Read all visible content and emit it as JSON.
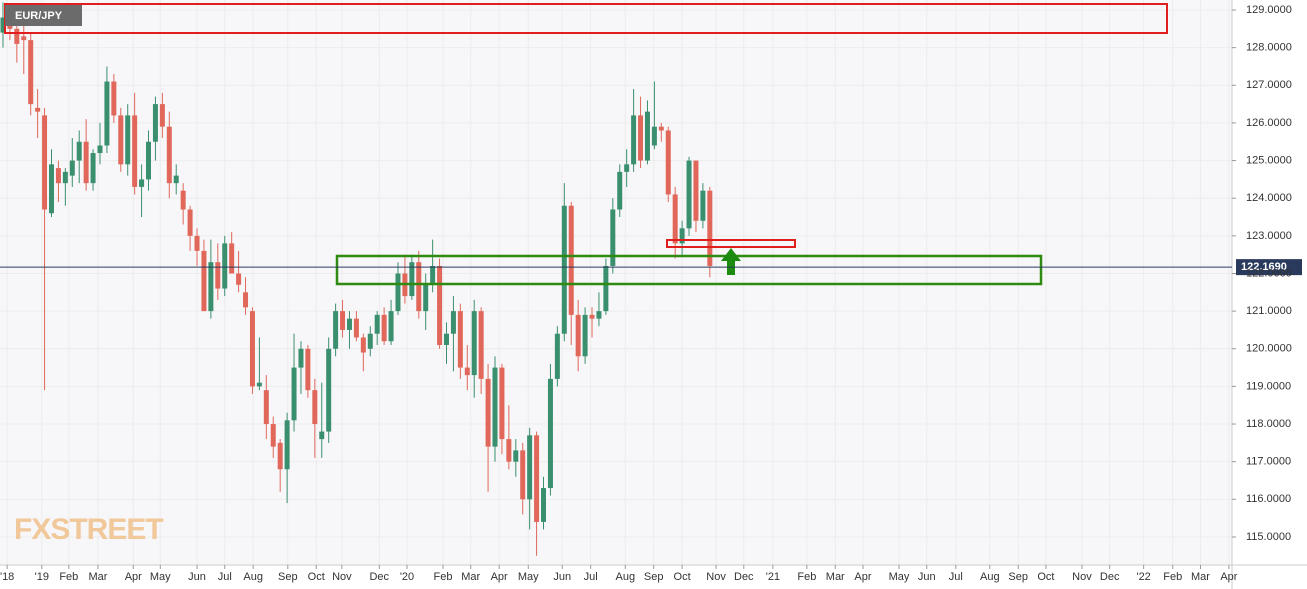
{
  "chart_data": {
    "type": "candlestick",
    "title": "EUR/JPY",
    "watermark": "FXSTREET",
    "up_color": "#3a8f6e",
    "down_color": "#e0675a",
    "grid": true,
    "xlim": [
      -0.43,
      177.35
    ],
    "ylim": [
      114.255,
      129.266
    ],
    "yticks": [
      {
        "value": 115,
        "label": "115.0000"
      },
      {
        "value": 116,
        "label": "116.0000"
      },
      {
        "value": 117,
        "label": "117.0000"
      },
      {
        "value": 118,
        "label": "118.0000"
      },
      {
        "value": 119,
        "label": "119.0000"
      },
      {
        "value": 120,
        "label": "120.0000"
      },
      {
        "value": 121,
        "label": "121.0000"
      },
      {
        "value": 122,
        "label": "122.0000"
      },
      {
        "value": 123,
        "label": "123.0000"
      },
      {
        "value": 124,
        "label": "124.0000"
      },
      {
        "value": 125,
        "label": "125.0000"
      },
      {
        "value": 126,
        "label": "126.0000"
      },
      {
        "value": 127,
        "label": "127.0000"
      },
      {
        "value": 128,
        "label": "128.0000"
      },
      {
        "value": 129,
        "label": "129.0000"
      }
    ],
    "xticks": [
      {
        "value": 0.6,
        "label": "'18"
      },
      {
        "value": 5.6,
        "label": "'19"
      },
      {
        "value": 9.5,
        "label": "Feb"
      },
      {
        "value": 13.7,
        "label": "Mar"
      },
      {
        "value": 18.8,
        "label": "Apr"
      },
      {
        "value": 22.7,
        "label": "May"
      },
      {
        "value": 28.0,
        "label": "Jun"
      },
      {
        "value": 32.0,
        "label": "Jul"
      },
      {
        "value": 36.1,
        "label": "Aug"
      },
      {
        "value": 41.1,
        "label": "Sep"
      },
      {
        "value": 45.2,
        "label": "Oct"
      },
      {
        "value": 48.9,
        "label": "Nov"
      },
      {
        "value": 54.3,
        "label": "Dec"
      },
      {
        "value": 58.3,
        "label": "'20"
      },
      {
        "value": 63.5,
        "label": "Feb"
      },
      {
        "value": 67.5,
        "label": "Mar"
      },
      {
        "value": 71.6,
        "label": "Apr"
      },
      {
        "value": 75.8,
        "label": "May"
      },
      {
        "value": 80.7,
        "label": "Jun"
      },
      {
        "value": 84.8,
        "label": "Jul"
      },
      {
        "value": 89.8,
        "label": "Aug"
      },
      {
        "value": 93.9,
        "label": "Sep"
      },
      {
        "value": 98.0,
        "label": "Oct"
      },
      {
        "value": 102.9,
        "label": "Nov"
      },
      {
        "value": 106.9,
        "label": "Dec"
      },
      {
        "value": 111.1,
        "label": "'21"
      },
      {
        "value": 116.0,
        "label": "Feb"
      },
      {
        "value": 120.1,
        "label": "Mar"
      },
      {
        "value": 124.1,
        "label": "Apr"
      },
      {
        "value": 129.3,
        "label": "May"
      },
      {
        "value": 133.3,
        "label": "Jun"
      },
      {
        "value": 137.5,
        "label": "Jul"
      },
      {
        "value": 142.4,
        "label": "Aug"
      },
      {
        "value": 146.5,
        "label": "Sep"
      },
      {
        "value": 150.5,
        "label": "Oct"
      },
      {
        "value": 155.7,
        "label": "Nov"
      },
      {
        "value": 159.7,
        "label": "Dec"
      },
      {
        "value": 164.6,
        "label": "'22"
      },
      {
        "value": 168.8,
        "label": "Feb"
      },
      {
        "value": 172.8,
        "label": "Mar"
      },
      {
        "value": 176.9,
        "label": "Apr"
      }
    ],
    "last_price": {
      "value": 122.169,
      "label": "122.1690"
    },
    "x": [
      0,
      1,
      2,
      3,
      4,
      5,
      6,
      7,
      8,
      9,
      10,
      11,
      12,
      13,
      14,
      15,
      16,
      17,
      18,
      19,
      20,
      21,
      22,
      23,
      24,
      25,
      26,
      27,
      28,
      29,
      30,
      31,
      32,
      33,
      34,
      35,
      36,
      37,
      38,
      39,
      40,
      41,
      42,
      43,
      44,
      45,
      46,
      47,
      48,
      49,
      50,
      51,
      52,
      53,
      54,
      55,
      56,
      57,
      58,
      59,
      60,
      61,
      62,
      63,
      64,
      65,
      66,
      67,
      68,
      69,
      70,
      71,
      72,
      73,
      74,
      75,
      76,
      77,
      78,
      79,
      80,
      81,
      82,
      83,
      84,
      85,
      86,
      87,
      88,
      89,
      90,
      91,
      92,
      93,
      94,
      95,
      96,
      97,
      98,
      99,
      100,
      101,
      102
    ],
    "open": [
      128.4,
      128.8,
      128.5,
      128.3,
      128.2,
      126.4,
      126.2,
      123.6,
      124.8,
      124.4,
      124.6,
      125.0,
      125.5,
      124.4,
      125.2,
      125.4,
      127.1,
      126.2,
      124.9,
      126.2,
      124.3,
      124.5,
      125.5,
      126.5,
      125.9,
      124.4,
      124.2,
      123.7,
      123.0,
      122.6,
      121.0,
      122.3,
      121.6,
      122.8,
      122.0,
      121.5,
      121.0,
      119.0,
      118.9,
      118.0,
      117.5,
      116.8,
      118.1,
      119.5,
      120.0,
      118.9,
      117.6,
      117.8,
      120.0,
      121.0,
      120.5,
      120.8,
      120.3,
      120.0,
      120.4,
      120.9,
      120.2,
      121.0,
      122.0,
      121.4,
      122.3,
      121.0,
      121.7,
      122.2,
      120.1,
      120.4,
      121.0,
      119.5,
      119.3,
      121.0,
      119.2,
      117.4,
      119.5,
      117.6,
      117.0,
      117.3,
      116.0,
      117.7,
      115.4,
      116.3,
      119.2,
      120.4,
      123.8,
      120.9,
      119.8,
      120.9,
      120.8,
      121.0,
      122.2,
      123.7,
      124.7,
      124.9,
      126.2,
      125.0,
      125.4,
      125.9,
      125.8,
      124.1,
      122.8,
      123.2,
      125.0,
      123.4,
      124.2
    ],
    "high": [
      129.2,
      129.1,
      128.9,
      129.0,
      128.4,
      126.9,
      126.4,
      125.3,
      125.0,
      124.8,
      125.6,
      125.8,
      126.1,
      125.3,
      126.0,
      127.5,
      127.3,
      126.4,
      126.5,
      126.8,
      124.9,
      125.8,
      126.7,
      126.8,
      126.3,
      124.9,
      124.4,
      123.8,
      123.2,
      122.9,
      122.9,
      122.8,
      123.0,
      123.1,
      122.6,
      121.9,
      121.1,
      120.3,
      119.3,
      118.2,
      117.6,
      118.3,
      120.4,
      120.2,
      120.1,
      119.2,
      119.1,
      120.3,
      121.2,
      121.3,
      121.0,
      121.0,
      120.4,
      120.6,
      121.0,
      121.1,
      121.3,
      122.3,
      122.5,
      122.5,
      122.6,
      122.0,
      122.9,
      122.4,
      120.7,
      121.4,
      121.2,
      120.1,
      121.3,
      121.1,
      119.6,
      119.8,
      119.6,
      118.5,
      117.6,
      117.5,
      117.9,
      117.8,
      116.6,
      119.6,
      120.6,
      124.4,
      123.9,
      121.3,
      121.1,
      121.1,
      121.5,
      122.4,
      124.0,
      124.9,
      125.3,
      126.9,
      126.7,
      126.6,
      127.1,
      126.0,
      125.9,
      124.3,
      123.4,
      125.1,
      125.0,
      124.4,
      124.3
    ],
    "low": [
      128.0,
      128.2,
      127.6,
      127.3,
      126.2,
      125.6,
      118.9,
      123.5,
      123.9,
      123.8,
      124.3,
      124.4,
      124.2,
      124.2,
      124.9,
      125.2,
      126.0,
      124.7,
      124.6,
      124.1,
      123.5,
      124.2,
      125.0,
      125.6,
      124.0,
      124.1,
      123.3,
      122.6,
      122.2,
      121.0,
      120.8,
      121.3,
      121.4,
      122.0,
      121.5,
      120.9,
      118.8,
      118.9,
      117.6,
      117.1,
      116.2,
      115.9,
      117.8,
      118.8,
      118.7,
      117.1,
      117.1,
      117.5,
      119.8,
      120.3,
      120.0,
      120.2,
      119.4,
      119.8,
      120.1,
      120.1,
      120.1,
      120.9,
      121.2,
      121.3,
      120.8,
      120.5,
      121.5,
      120.0,
      119.6,
      119.4,
      119.2,
      118.9,
      118.7,
      118.8,
      116.2,
      117.0,
      117.2,
      116.8,
      116.6,
      115.6,
      115.2,
      114.5,
      115.2,
      116.1,
      119.0,
      120.2,
      120.1,
      119.4,
      119.6,
      120.3,
      120.6,
      120.9,
      122.0,
      123.5,
      124.3,
      124.7,
      124.8,
      124.9,
      125.3,
      125.5,
      123.9,
      122.4,
      122.5,
      123.0,
      123.1,
      123.2,
      121.9
    ],
    "close": [
      128.8,
      128.5,
      128.1,
      128.2,
      126.5,
      126.3,
      123.7,
      124.9,
      124.4,
      124.7,
      125.0,
      125.5,
      124.4,
      125.2,
      125.4,
      127.1,
      126.2,
      124.9,
      126.2,
      124.3,
      124.5,
      125.5,
      126.5,
      125.9,
      124.4,
      124.6,
      123.7,
      123.0,
      122.6,
      121.0,
      122.3,
      121.6,
      122.8,
      122.0,
      121.7,
      121.1,
      119.0,
      119.1,
      118.0,
      117.4,
      116.8,
      118.1,
      119.5,
      120.0,
      118.9,
      118.0,
      117.8,
      120.0,
      121.0,
      120.5,
      120.8,
      120.3,
      119.9,
      120.4,
      120.9,
      120.2,
      121.0,
      122.0,
      121.4,
      122.3,
      121.0,
      121.7,
      122.2,
      120.1,
      120.4,
      121.0,
      119.5,
      119.3,
      121.0,
      119.2,
      117.4,
      119.5,
      117.6,
      117.0,
      117.3,
      116.0,
      117.7,
      115.4,
      116.3,
      119.2,
      120.4,
      123.8,
      120.9,
      119.8,
      120.9,
      120.8,
      121.0,
      122.2,
      123.7,
      124.7,
      124.9,
      126.2,
      125.0,
      126.3,
      125.9,
      125.8,
      124.1,
      122.8,
      123.2,
      125.0,
      123.4,
      124.2,
      122.2
    ]
  }
}
